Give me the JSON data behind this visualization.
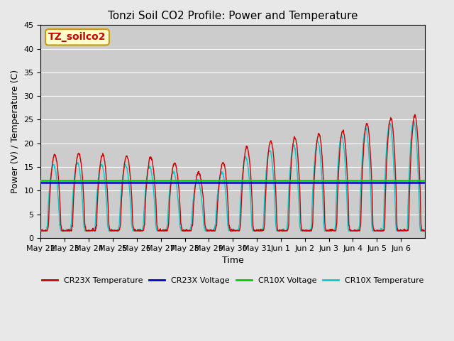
{
  "title": "Tonzi Soil CO2 Profile: Power and Temperature",
  "ylabel": "Power (V) / Temperature (C)",
  "xlabel": "Time",
  "ylim": [
    0,
    45
  ],
  "fig_bg_color": "#e8e8e8",
  "plot_bg_color": "#cccccc",
  "annotation_text": "TZ_soilco2",
  "annotation_bg": "#ffffcc",
  "annotation_edge": "#cc9900",
  "cr23x_voltage_value": 11.7,
  "cr10x_voltage_value": 12.1,
  "tick_labels": [
    "May 22",
    "May 23",
    "May 24",
    "May 25",
    "May 26",
    "May 27",
    "May 28",
    "May 29",
    "May 30",
    "May 31",
    "Jun 1",
    "Jun 2",
    "Jun 3",
    "Jun 4",
    "Jun 5",
    "Jun 6"
  ],
  "cr23x_color": "#cc0000",
  "cr10x_color": "#00cccc",
  "cr23x_voltage_color": "#0000cc",
  "cr10x_voltage_color": "#00cc00",
  "legend_labels": [
    "CR23X Temperature",
    "CR23X Voltage",
    "CR10X Voltage",
    "CR10X Temperature"
  ],
  "yticks": [
    0,
    5,
    10,
    15,
    20,
    25,
    30,
    35,
    40,
    45
  ]
}
